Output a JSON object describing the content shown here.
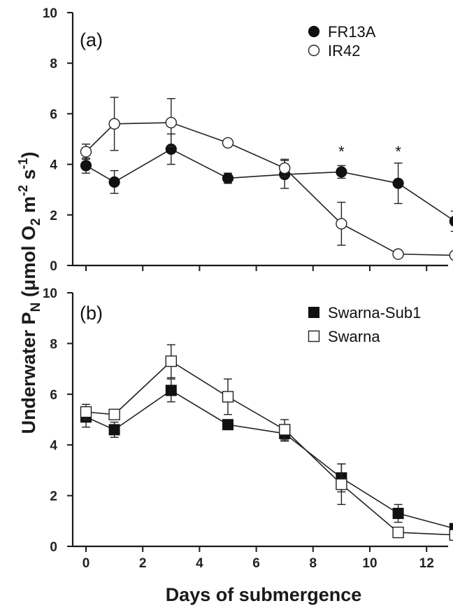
{
  "chart_data": [
    {
      "panel_label": "(a)",
      "type": "line",
      "ylim": [
        0,
        10
      ],
      "xlim": [
        0,
        13
      ],
      "yticks": [
        0,
        2,
        4,
        6,
        8,
        10
      ],
      "legend_position": "top-right",
      "series": [
        {
          "name": "FR13A",
          "marker": "filled-circle",
          "x": [
            0,
            1,
            3,
            5,
            7,
            9,
            11,
            13
          ],
          "y": [
            3.95,
            3.3,
            4.6,
            3.45,
            3.6,
            3.7,
            3.25,
            1.75
          ],
          "err": [
            0.3,
            0.45,
            0.6,
            0.2,
            0.55,
            0.25,
            0.8,
            0.4
          ]
        },
        {
          "name": "IR42",
          "marker": "open-circle",
          "x": [
            0,
            1,
            3,
            5,
            7,
            9,
            11,
            13
          ],
          "y": [
            4.5,
            5.6,
            5.65,
            4.85,
            3.85,
            1.65,
            0.45,
            0.4
          ],
          "err": [
            0.3,
            1.05,
            0.95,
            0.0,
            0.35,
            0.85,
            0.0,
            0.0
          ]
        }
      ],
      "annotations": [
        {
          "x": 9,
          "y": 4.3,
          "text": "*"
        },
        {
          "x": 11,
          "y": 4.3,
          "text": "*"
        }
      ]
    },
    {
      "panel_label": "(b)",
      "type": "line",
      "ylim": [
        0,
        10
      ],
      "xlim": [
        0,
        13
      ],
      "yticks": [
        0,
        2,
        4,
        6,
        8,
        10
      ],
      "legend_position": "top-right",
      "series": [
        {
          "name": "Swarna-Sub1",
          "marker": "filled-square",
          "x": [
            0,
            1,
            3,
            5,
            7,
            9,
            11,
            13
          ],
          "y": [
            5.1,
            4.6,
            6.15,
            4.8,
            4.45,
            2.7,
            1.3,
            0.7
          ],
          "err": [
            0.4,
            0.3,
            0.45,
            0.0,
            0.3,
            0.55,
            0.35,
            0.0
          ]
        },
        {
          "name": "Swarna",
          "marker": "open-square",
          "x": [
            0,
            1,
            3,
            5,
            7,
            9,
            11,
            13
          ],
          "y": [
            5.3,
            5.2,
            7.3,
            5.9,
            4.6,
            2.45,
            0.55,
            0.45
          ],
          "err": [
            0.3,
            0.0,
            0.65,
            0.7,
            0.4,
            0.8,
            0.0,
            0.0
          ]
        }
      ]
    }
  ],
  "xaxis": {
    "label": "Days of submergence",
    "ticks": [
      0,
      2,
      4,
      6,
      8,
      10,
      12
    ]
  },
  "yaxis_label": {
    "main": "Underwater P",
    "sub_n": "N",
    "unit_open": " (μmol O",
    "sub_2": "2",
    "unit_m": " m",
    "sup_m2": "-2",
    "unit_s": " s",
    "sup_s1": "-1",
    "close": ")"
  }
}
